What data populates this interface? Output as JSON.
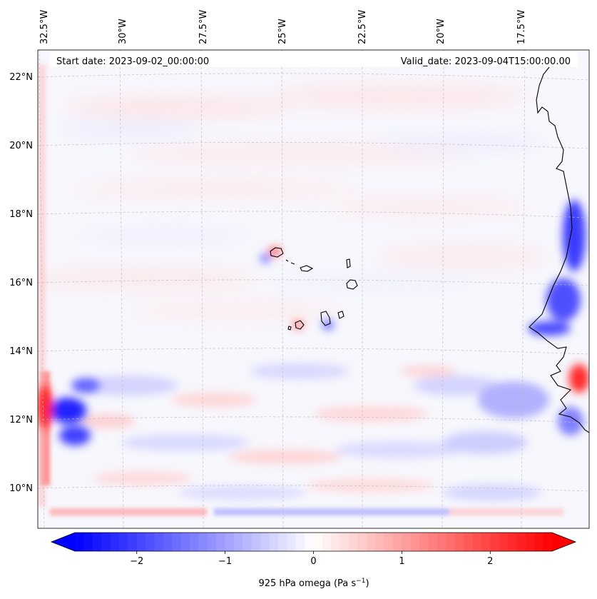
{
  "header": {
    "start_date": "Start date: 2023-09-02_00:00:00",
    "valid_date": "Valid_date: 2023-09-04T15:00:00.00"
  },
  "map": {
    "projection": "lambert-conformal",
    "lon_range": [
      -33,
      -15.5
    ],
    "lat_range": [
      8.8,
      22.7
    ],
    "gridlines": "dashed light gray",
    "lon_labels": [
      "32.5°W",
      "30°W",
      "27.5°W",
      "25°W",
      "22.5°W",
      "20°W",
      "17.5°W"
    ],
    "lat_labels": [
      "22°N",
      "20°N",
      "18°N",
      "16°N",
      "14°N",
      "12°N",
      "10°N"
    ],
    "features": [
      "coastline-west-africa",
      "cape-verde-islands"
    ]
  },
  "colorbar": {
    "label": "925 hPa omega (Pa s",
    "label_exp": "−1",
    "label_close": ")",
    "ticks": [
      "−2",
      "−1",
      "0",
      "1",
      "2"
    ],
    "range": [
      -2.7,
      2.7
    ],
    "colormap": "bwr",
    "extend": "both",
    "colors": {
      "low": "#0000ff",
      "mid": "#ffffff",
      "high": "#ff0000"
    }
  }
}
